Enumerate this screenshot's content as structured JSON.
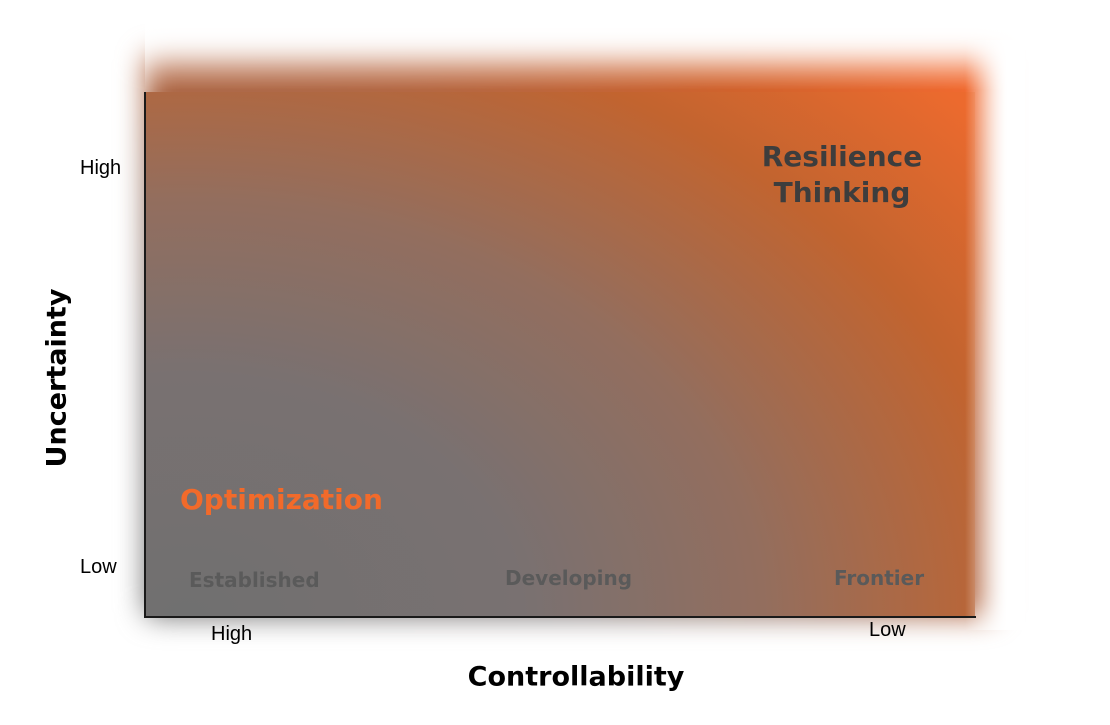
{
  "y_axis": {
    "title": "Uncertainty",
    "tick_high": "High",
    "tick_low": "Low"
  },
  "x_axis": {
    "title": "Controllability",
    "tick_high": "High",
    "tick_low": "Low"
  },
  "regions": {
    "optimization": "Optimization",
    "resilience_line1": "Resilience",
    "resilience_line2": "Thinking"
  },
  "stages": {
    "established": "Established",
    "developing": "Developing",
    "frontier": "Frontier"
  },
  "colors": {
    "optimization_text": "#f26a2a",
    "gradient_low": "#707070",
    "gradient_high": "#f26a30",
    "stage_text": "#5a5a5a",
    "resilience_text": "#3d3d3d"
  }
}
